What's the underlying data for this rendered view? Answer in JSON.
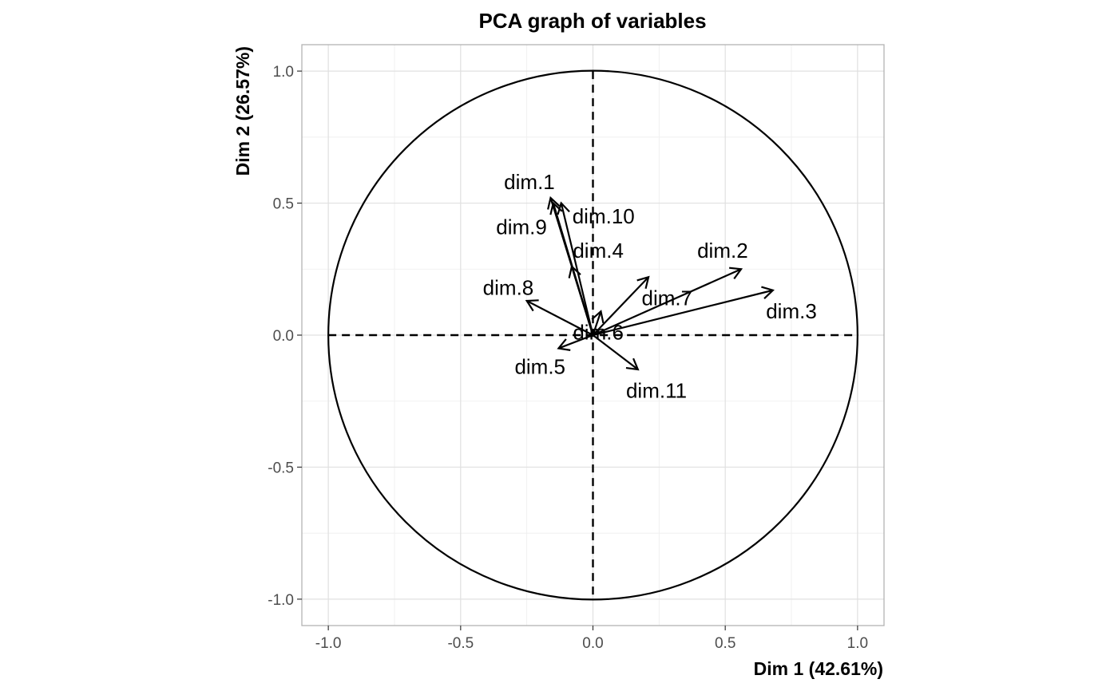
{
  "chart_data": {
    "type": "scatter",
    "subtype": "pca-correlation-circle",
    "title": "PCA graph of variables",
    "xlabel": "Dim 1 (42.61%)",
    "ylabel": "Dim 2 (26.57%)",
    "xlim": [
      -1.1,
      1.1
    ],
    "ylim": [
      -1.1,
      1.1
    ],
    "xticks": [
      "-1.0",
      "-0.5",
      "0.0",
      "0.5",
      "1.0"
    ],
    "yticks": [
      "-1.0",
      "-0.5",
      "0.0",
      "0.5",
      "1.0"
    ],
    "tick_values": [
      -1.0,
      -0.5,
      0.0,
      0.5,
      1.0
    ],
    "grid": true,
    "unit_circle": true,
    "reference_lines": "dashed at x=0 and y=0",
    "variables": [
      {
        "name": "dim.1",
        "x": -0.16,
        "y": 0.52,
        "label_x": -0.24,
        "label_y": 0.58
      },
      {
        "name": "dim.2",
        "x": 0.56,
        "y": 0.25,
        "label_x": 0.49,
        "label_y": 0.32
      },
      {
        "name": "dim.3",
        "x": 0.68,
        "y": 0.17,
        "label_x": 0.75,
        "label_y": 0.09
      },
      {
        "name": "dim.4",
        "x": -0.08,
        "y": 0.26,
        "label_x": 0.02,
        "label_y": 0.32
      },
      {
        "name": "dim.5",
        "x": -0.13,
        "y": -0.05,
        "label_x": -0.2,
        "label_y": -0.12
      },
      {
        "name": "dim.6",
        "x": 0.03,
        "y": 0.09,
        "label_x": 0.02,
        "label_y": 0.01
      },
      {
        "name": "dim.7",
        "x": 0.21,
        "y": 0.22,
        "label_x": 0.28,
        "label_y": 0.14
      },
      {
        "name": "dim.8",
        "x": -0.25,
        "y": 0.13,
        "label_x": -0.32,
        "label_y": 0.18
      },
      {
        "name": "dim.9",
        "x": -0.15,
        "y": 0.5,
        "label_x": -0.27,
        "label_y": 0.41
      },
      {
        "name": "dim.10",
        "x": -0.12,
        "y": 0.5,
        "label_x": 0.04,
        "label_y": 0.45
      },
      {
        "name": "dim.11",
        "x": 0.17,
        "y": -0.13,
        "label_x": 0.24,
        "label_y": -0.21
      }
    ]
  }
}
